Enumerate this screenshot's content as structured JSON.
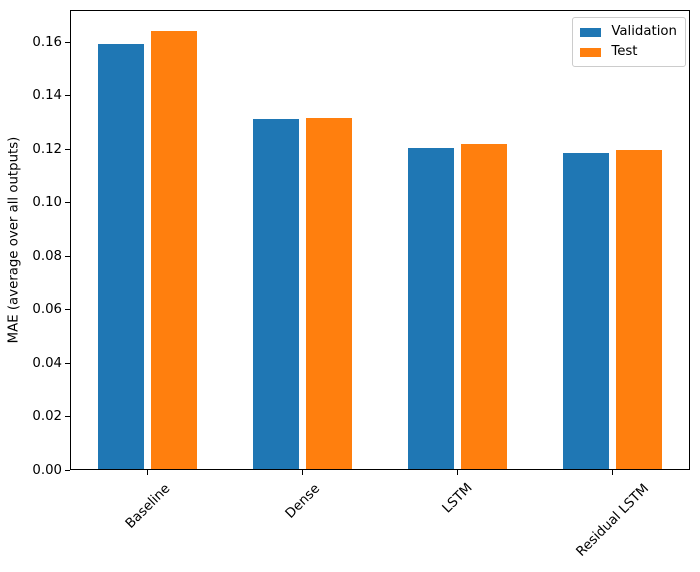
{
  "chart_data": {
    "type": "bar",
    "title": "",
    "xlabel": "",
    "ylabel": "MAE (average over all outputs)",
    "categories": [
      "Baseline",
      "Dense",
      "LSTM",
      "Residual LSTM"
    ],
    "series": [
      {
        "name": "Validation",
        "color": "#1f77b4",
        "values": [
          0.1589,
          0.1309,
          0.12,
          0.1183
        ]
      },
      {
        "name": "Test",
        "color": "#ff7f0e",
        "values": [
          0.1638,
          0.1311,
          0.1215,
          0.1193
        ]
      }
    ],
    "ylim": [
      0,
      0.172
    ],
    "yticks": [
      0.0,
      0.02,
      0.04,
      0.06,
      0.08,
      0.1,
      0.12,
      0.14,
      0.16
    ],
    "ytick_labels": [
      "0.00",
      "0.02",
      "0.04",
      "0.06",
      "0.08",
      "0.10",
      "0.12",
      "0.14",
      "0.16"
    ],
    "x_tick_rotation": 45,
    "bar_width": 0.3,
    "bar_offset": 0.17,
    "grid": false,
    "legend_position": "upper right",
    "background_color": "#ffffff",
    "spine_color": "#000000"
  }
}
